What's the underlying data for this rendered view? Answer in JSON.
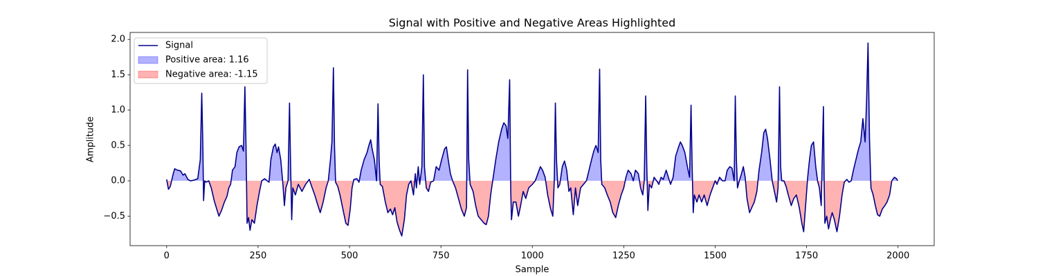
{
  "chart_data": {
    "type": "line",
    "title": "Signal with Positive and Negative Areas Highlighted",
    "xlabel": "Sample",
    "ylabel": "Amplitude",
    "xlim": [
      -99.95,
      2098.95
    ],
    "ylim": [
      -0.917,
      2.099
    ],
    "xticks": [
      0,
      250,
      500,
      750,
      1000,
      1250,
      1500,
      1750,
      2000
    ],
    "yticks": [
      {
        "value": -0.5,
        "label": "−0.5"
      },
      {
        "value": 0,
        "label": "0.0"
      },
      0.5,
      {
        "value": 1,
        "label": "1.0"
      },
      1.5,
      {
        "value": 2,
        "label": "2.0"
      }
    ],
    "legend": "upper left",
    "series": [
      {
        "name": "Signal",
        "color": "#00008b",
        "x": [
          0,
          5,
          10,
          18,
          22,
          30,
          38,
          45,
          50,
          58,
          65,
          75,
          85,
          92,
          96,
          99,
          101,
          104,
          108,
          115,
          122,
          130,
          137,
          143,
          150,
          158,
          165,
          170,
          175,
          180,
          187,
          192,
          198,
          205,
          210,
          214,
          217,
          220,
          224,
          228,
          233,
          240,
          247,
          254,
          260,
          268,
          275,
          280,
          285,
          292,
          297,
          302,
          306,
          312,
          318,
          322,
          326,
          332,
          336,
          339,
          342,
          345,
          352,
          360,
          370,
          380,
          390,
          398,
          405,
          412,
          420,
          428,
          436,
          442,
          448,
          452,
          456,
          459,
          462,
          468,
          474,
          482,
          490,
          496,
          502,
          507,
          512,
          520,
          526,
          532,
          540,
          548,
          553,
          558,
          562,
          568,
          574,
          578,
          581,
          584,
          590,
          598,
          605,
          612,
          618,
          624,
          630,
          637,
          643,
          650,
          656,
          662,
          668,
          675,
          680,
          683,
          688,
          692,
          698,
          702,
          705,
          710,
          716,
          722,
          730,
          737,
          745,
          752,
          760,
          765,
          770,
          776,
          782,
          790,
          798,
          806,
          814,
          820,
          823,
          826,
          830,
          838,
          845,
          852,
          860,
          868,
          874,
          880,
          886,
          893,
          900,
          908,
          916,
          922,
          928,
          933,
          938,
          941,
          943,
          948,
          955,
          962,
          968,
          975,
          982,
          990,
          1000,
          1008,
          1015,
          1022,
          1028,
          1035,
          1042,
          1050,
          1056,
          1060,
          1063,
          1066,
          1070,
          1075,
          1082,
          1088,
          1094,
          1100,
          1105,
          1112,
          1118,
          1124,
          1132,
          1140,
          1148,
          1155,
          1162,
          1168,
          1174,
          1180,
          1184,
          1187,
          1190,
          1198,
          1205,
          1213,
          1220,
          1228,
          1235,
          1243,
          1250,
          1256,
          1262,
          1270,
          1276,
          1282,
          1290,
          1296,
          1302,
          1306,
          1310,
          1313,
          1316,
          1320,
          1326,
          1333,
          1340,
          1346,
          1352,
          1358,
          1366,
          1372,
          1378,
          1385,
          1392,
          1400,
          1405,
          1410,
          1417,
          1424,
          1430,
          1434,
          1437,
          1440,
          1443,
          1450,
          1456,
          1463,
          1470,
          1478,
          1486,
          1493,
          1500,
          1505,
          1512,
          1520,
          1527,
          1533,
          1540,
          1546,
          1552,
          1555,
          1558,
          1561,
          1566,
          1572,
          1577,
          1582,
          1587,
          1594,
          1600,
          1607,
          1614,
          1620,
          1627,
          1633,
          1638,
          1643,
          1650,
          1656,
          1662,
          1668,
          1672,
          1676,
          1679,
          1682,
          1688,
          1694,
          1700,
          1708,
          1715,
          1722,
          1730,
          1737,
          1742,
          1748,
          1753,
          1758,
          1763,
          1769,
          1775,
          1780,
          1785,
          1790,
          1796,
          1798,
          1800,
          1805,
          1810,
          1815,
          1820,
          1826,
          1833,
          1840,
          1847,
          1853,
          1860,
          1866,
          1872,
          1878,
          1885,
          1892,
          1898,
          1904,
          1910,
          1914,
          1918,
          1922,
          1926,
          1932,
          1938,
          1944,
          1950,
          1957,
          1964,
          1970,
          1977,
          1983,
          1990,
          1996,
          1999
        ],
        "values": [
          0.02,
          -0.12,
          -0.08,
          0.1,
          0.17,
          0.15,
          0.14,
          0.08,
          0.1,
          0.02,
          0.0,
          0.01,
          0.03,
          0.3,
          1.24,
          0.5,
          -0.28,
          0.0,
          -0.02,
          0.0,
          -0.1,
          -0.28,
          -0.4,
          -0.5,
          -0.42,
          -0.3,
          -0.22,
          -0.1,
          -0.05,
          0.15,
          0.2,
          0.4,
          0.48,
          0.5,
          0.42,
          1.33,
          0.5,
          -0.6,
          -0.52,
          -0.7,
          -0.55,
          -0.6,
          -0.35,
          -0.15,
          0.0,
          0.03,
          0.0,
          -0.02,
          0.3,
          0.48,
          0.52,
          0.4,
          0.48,
          0.3,
          -0.05,
          -0.35,
          -0.1,
          0.0,
          1.1,
          0.2,
          -0.55,
          -0.1,
          -0.2,
          -0.05,
          -0.15,
          -0.05,
          0.02,
          -0.1,
          -0.2,
          -0.32,
          -0.45,
          -0.3,
          -0.1,
          0.0,
          0.3,
          0.55,
          1.6,
          0.5,
          -0.02,
          -0.08,
          -0.2,
          -0.4,
          -0.6,
          -0.63,
          -0.4,
          -0.1,
          0.02,
          0.03,
          -0.02,
          0.15,
          0.3,
          0.4,
          0.5,
          0.58,
          0.45,
          0.3,
          0.0,
          1.09,
          0.3,
          -0.05,
          -0.08,
          -0.3,
          -0.45,
          -0.4,
          -0.48,
          -0.38,
          -0.58,
          -0.7,
          -0.78,
          -0.55,
          -0.2,
          -0.05,
          0.0,
          -0.2,
          0.1,
          -0.1,
          0.2,
          -0.05,
          0.2,
          1.5,
          0.2,
          -0.1,
          -0.15,
          -0.02,
          0.0,
          0.2,
          0.15,
          0.3,
          0.45,
          0.48,
          0.3,
          0.1,
          0.0,
          -0.1,
          -0.25,
          -0.4,
          -0.5,
          -0.38,
          1.57,
          0.3,
          -0.05,
          -0.15,
          -0.35,
          -0.5,
          -0.55,
          -0.6,
          -0.62,
          -0.5,
          -0.2,
          0.05,
          0.3,
          0.55,
          0.73,
          0.82,
          0.78,
          0.6,
          1.43,
          -0.15,
          -0.55,
          -0.3,
          -0.3,
          -0.5,
          -0.35,
          -0.15,
          -0.25,
          -0.1,
          -0.05,
          0.0,
          0.1,
          0.2,
          0.15,
          0.05,
          -0.2,
          -0.4,
          -0.5,
          0.0,
          1.1,
          0.3,
          -0.1,
          -0.05,
          0.2,
          0.28,
          0.15,
          -0.15,
          -0.1,
          -0.48,
          -0.1,
          -0.35,
          -0.1,
          -0.05,
          0.0,
          0.15,
          0.3,
          0.42,
          0.5,
          0.4,
          1.58,
          0.3,
          -0.05,
          -0.1,
          -0.2,
          -0.3,
          -0.45,
          -0.52,
          -0.35,
          -0.2,
          -0.1,
          0.05,
          0.15,
          0.1,
          0.0,
          0.15,
          0.1,
          -0.1,
          -0.2,
          0.0,
          1.2,
          0.2,
          -0.42,
          -0.05,
          -0.1,
          0.05,
          0.0,
          -0.05,
          0.05,
          0.02,
          0.15,
          0.05,
          -0.05,
          0.05,
          0.35,
          0.48,
          0.55,
          0.5,
          0.4,
          0.2,
          0.05,
          1.07,
          0.2,
          -0.45,
          -0.2,
          -0.3,
          -0.2,
          -0.3,
          -0.2,
          -0.35,
          -0.2,
          -0.1,
          0.0,
          -0.05,
          0.05,
          0.0,
          0.0,
          0.15,
          0.2,
          0.18,
          0.0,
          1.2,
          0.3,
          -0.1,
          0.0,
          0.1,
          0.2,
          0.05,
          -0.25,
          -0.45,
          -0.38,
          -0.3,
          -0.15,
          0.15,
          0.4,
          0.68,
          0.73,
          0.6,
          0.3,
          0.0,
          -0.15,
          -0.3,
          -0.1,
          1.33,
          0.2,
          0.0,
          0.0,
          -0.08,
          -0.2,
          -0.35,
          -0.25,
          -0.2,
          -0.38,
          -0.6,
          -0.72,
          -0.3,
          0.05,
          0.3,
          0.5,
          0.55,
          0.2,
          0.0,
          -0.1,
          -0.35,
          1.05,
          0.0,
          -0.6,
          -0.5,
          -0.68,
          -0.55,
          -0.45,
          -0.55,
          -0.72,
          -0.5,
          -0.2,
          -0.02,
          0.02,
          -0.02,
          0.0,
          0.15,
          0.3,
          0.45,
          0.55,
          0.88,
          0.55,
          1.12,
          1.95,
          0.6,
          -0.1,
          -0.2,
          -0.35,
          -0.48,
          -0.5,
          -0.4,
          -0.35,
          -0.3,
          -0.2,
          0.0,
          0.05,
          0.03,
          0.0
        ]
      }
    ],
    "areas": [
      {
        "name": "Positive area: 1.16",
        "color": "#0000ff"
      },
      {
        "name": "Negative area: -1.15",
        "color": "#ff0000"
      }
    ]
  }
}
